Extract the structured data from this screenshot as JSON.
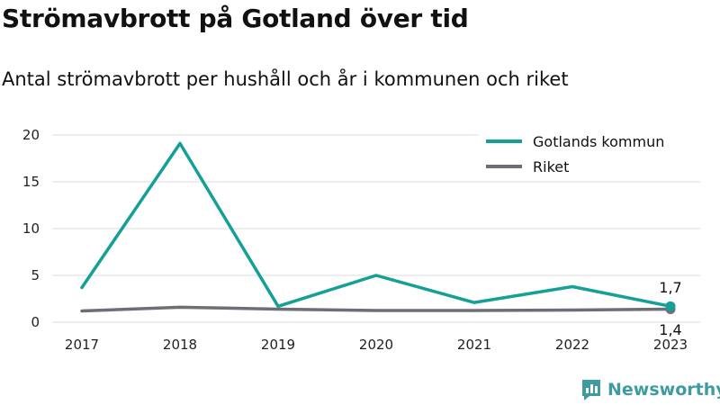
{
  "title": "Strömavbrott på Gotland över tid",
  "subtitle": "Antal strömavbrott per hushåll och år i kommunen och riket",
  "brand": {
    "name": "Newsworthy",
    "icon": "newsworthy-logo-icon",
    "color": "#3e9ca0"
  },
  "chart_data": {
    "type": "line",
    "x": [
      "2017",
      "2018",
      "2019",
      "2020",
      "2021",
      "2022",
      "2023"
    ],
    "ylim": [
      0,
      20
    ],
    "yticks": [
      "0",
      "5",
      "10",
      "15",
      "20"
    ],
    "grid": true,
    "legend_position": "top-right",
    "series": [
      {
        "name": "Gotlands kommun",
        "color": "#14a096",
        "values": [
          3.7,
          19.1,
          1.7,
          5.0,
          2.1,
          3.8,
          1.7
        ]
      },
      {
        "name": "Riket",
        "color": "#6e6e76",
        "values": [
          1.2,
          1.6,
          1.4,
          1.25,
          1.25,
          1.3,
          1.4
        ]
      }
    ],
    "end_labels": [
      "1,7",
      "1,4"
    ]
  }
}
